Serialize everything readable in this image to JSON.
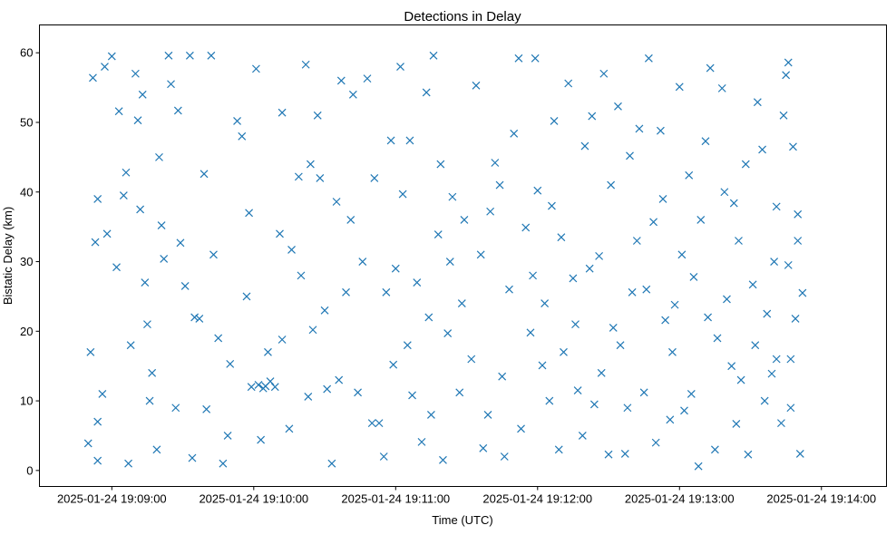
{
  "chart_data": {
    "type": "scatter",
    "title": "Detections in Delay",
    "xlabel": "Time (UTC)",
    "ylabel": "Bistatic Delay (km)",
    "x_base_time": "2025-01-24 19:08:00",
    "x_units": "seconds after base time",
    "xlim": [
      29.4,
      387.5
    ],
    "ylim": [
      -2.3,
      64
    ],
    "grid": false,
    "marker": "x",
    "color": "#1f77b4",
    "x_ticks": [
      {
        "value": 60,
        "label": "2025-01-24 19:09:00"
      },
      {
        "value": 120,
        "label": "2025-01-24 19:10:00"
      },
      {
        "value": 180,
        "label": "2025-01-24 19:11:00"
      },
      {
        "value": 240,
        "label": "2025-01-24 19:12:00"
      },
      {
        "value": 300,
        "label": "2025-01-24 19:13:00"
      },
      {
        "value": 360,
        "label": "2025-01-24 19:14:00"
      }
    ],
    "y_ticks": [
      {
        "value": 0,
        "label": "0"
      },
      {
        "value": 10,
        "label": "10"
      },
      {
        "value": 20,
        "label": "20"
      },
      {
        "value": 30,
        "label": "30"
      },
      {
        "value": 40,
        "label": "40"
      },
      {
        "value": 50,
        "label": "50"
      },
      {
        "value": 60,
        "label": "60"
      }
    ],
    "points": [
      [
        50,
        3.9
      ],
      [
        51,
        17
      ],
      [
        52,
        56.4
      ],
      [
        53,
        32.8
      ],
      [
        54,
        39
      ],
      [
        54,
        7
      ],
      [
        54,
        1.4
      ],
      [
        57,
        58
      ],
      [
        58,
        34
      ],
      [
        60,
        59.5
      ],
      [
        62,
        29.2
      ],
      [
        63,
        51.6
      ],
      [
        65,
        39.5
      ],
      [
        66,
        42.8
      ],
      [
        67,
        1
      ],
      [
        70,
        57
      ],
      [
        71,
        50.3
      ],
      [
        72,
        37.5
      ],
      [
        73,
        54
      ],
      [
        75,
        21
      ],
      [
        76,
        10
      ],
      [
        77,
        14
      ],
      [
        79,
        3
      ],
      [
        81,
        35.2
      ],
      [
        82,
        30.4
      ],
      [
        84,
        59.6
      ],
      [
        85,
        55.5
      ],
      [
        88,
        51.7
      ],
      [
        89,
        32.7
      ],
      [
        91,
        26.5
      ],
      [
        93,
        59.6
      ],
      [
        94,
        1.8
      ],
      [
        97,
        21.8
      ],
      [
        99,
        42.6
      ],
      [
        100,
        8.8
      ],
      [
        102,
        59.6
      ],
      [
        105,
        19
      ],
      [
        107,
        1
      ],
      [
        110,
        15.3
      ],
      [
        113,
        50.2
      ],
      [
        117,
        25
      ],
      [
        118,
        37
      ],
      [
        121,
        57.7
      ],
      [
        123,
        4.4
      ],
      [
        125,
        12.1
      ],
      [
        127,
        12.8
      ],
      [
        129,
        12
      ],
      [
        132,
        51.4
      ],
      [
        132,
        18.8
      ],
      [
        136,
        31.7
      ],
      [
        139,
        42.2
      ],
      [
        142,
        58.3
      ],
      [
        143,
        10.6
      ],
      [
        145,
        20.2
      ],
      [
        147,
        51
      ],
      [
        148,
        42
      ],
      [
        151,
        11.7
      ],
      [
        153,
        1
      ],
      [
        155,
        38.6
      ],
      [
        157,
        56
      ],
      [
        159,
        25.6
      ],
      [
        162,
        54
      ],
      [
        164,
        11.2
      ],
      [
        168,
        56.3
      ],
      [
        170,
        6.8
      ],
      [
        173,
        6.8
      ],
      [
        176,
        25.6
      ],
      [
        178,
        47.4
      ],
      [
        179,
        15.2
      ],
      [
        182,
        58
      ],
      [
        183,
        39.7
      ],
      [
        186,
        47.4
      ],
      [
        187,
        10.8
      ],
      [
        191,
        4.1
      ],
      [
        193,
        54.3
      ],
      [
        194,
        22
      ],
      [
        196,
        59.6
      ],
      [
        198,
        33.9
      ],
      [
        200,
        1.5
      ],
      [
        202,
        19.7
      ],
      [
        204,
        39.3
      ],
      [
        207,
        11.2
      ],
      [
        209,
        36
      ],
      [
        214,
        55.3
      ],
      [
        217,
        3.2
      ],
      [
        220,
        37.2
      ],
      [
        222,
        44.2
      ],
      [
        225,
        13.5
      ],
      [
        226,
        2
      ],
      [
        230,
        48.4
      ],
      [
        232,
        59.2
      ],
      [
        235,
        34.9
      ],
      [
        237,
        19.8
      ],
      [
        239,
        59.2
      ],
      [
        240,
        40.2
      ],
      [
        242,
        15.1
      ],
      [
        245,
        10
      ],
      [
        247,
        50.2
      ],
      [
        249,
        3
      ],
      [
        250,
        33.5
      ],
      [
        253,
        55.6
      ],
      [
        255,
        27.6
      ],
      [
        257,
        11.5
      ],
      [
        260,
        46.6
      ],
      [
        263,
        50.9
      ],
      [
        264,
        9.5
      ],
      [
        266,
        30.8
      ],
      [
        268,
        57
      ],
      [
        270,
        2.3
      ],
      [
        272,
        20.5
      ],
      [
        274,
        52.3
      ],
      [
        277,
        2.4
      ],
      [
        279,
        45.2
      ],
      [
        280,
        25.6
      ],
      [
        283,
        49.1
      ],
      [
        285,
        11.2
      ],
      [
        287,
        59.2
      ],
      [
        289,
        35.7
      ],
      [
        292,
        48.8
      ],
      [
        294,
        21.6
      ],
      [
        296,
        7.3
      ],
      [
        298,
        23.8
      ],
      [
        300,
        55.1
      ],
      [
        302,
        8.6
      ],
      [
        304,
        42.4
      ],
      [
        306,
        27.8
      ],
      [
        308,
        0.6
      ],
      [
        311,
        47.3
      ],
      [
        313,
        57.8
      ],
      [
        316,
        19
      ],
      [
        318,
        54.9
      ],
      [
        320,
        24.6
      ],
      [
        323,
        38.4
      ],
      [
        324,
        6.7
      ],
      [
        326,
        13
      ],
      [
        329,
        2.3
      ],
      [
        331,
        26.7
      ],
      [
        333,
        52.9
      ],
      [
        335,
        46.1
      ],
      [
        337,
        22.5
      ],
      [
        339,
        13.9
      ],
      [
        341,
        37.9
      ],
      [
        343,
        6.8
      ],
      [
        345,
        56.8
      ],
      [
        346,
        29.5
      ],
      [
        349,
        21.8
      ],
      [
        350,
        36.8
      ],
      [
        351,
        2.4
      ],
      [
        348,
        46.5
      ],
      [
        346,
        58.6
      ],
      [
        341,
        16
      ],
      [
        56,
        11
      ],
      [
        68,
        18
      ],
      [
        74,
        27
      ],
      [
        80,
        45
      ],
      [
        87,
        9
      ],
      [
        95,
        22
      ],
      [
        103,
        31
      ],
      [
        109,
        5
      ],
      [
        115,
        48
      ],
      [
        119,
        12
      ],
      [
        122,
        12.3
      ],
      [
        124,
        11.8
      ],
      [
        126,
        17
      ],
      [
        131,
        34
      ],
      [
        135,
        6
      ],
      [
        140,
        28
      ],
      [
        144,
        44
      ],
      [
        150,
        23
      ],
      [
        156,
        13
      ],
      [
        161,
        36
      ],
      [
        166,
        30
      ],
      [
        171,
        42
      ],
      [
        175,
        2
      ],
      [
        180,
        29
      ],
      [
        185,
        18
      ],
      [
        189,
        27
      ],
      [
        195,
        8
      ],
      [
        199,
        44
      ],
      [
        203,
        30
      ],
      [
        208,
        24
      ],
      [
        212,
        16
      ],
      [
        216,
        31
      ],
      [
        219,
        8
      ],
      [
        224,
        41
      ],
      [
        228,
        26
      ],
      [
        233,
        6
      ],
      [
        238,
        28
      ],
      [
        243,
        24
      ],
      [
        246,
        38
      ],
      [
        251,
        17
      ],
      [
        256,
        21
      ],
      [
        259,
        5
      ],
      [
        262,
        29
      ],
      [
        267,
        14
      ],
      [
        271,
        41
      ],
      [
        275,
        18
      ],
      [
        278,
        9
      ],
      [
        282,
        33
      ],
      [
        286,
        26
      ],
      [
        290,
        4
      ],
      [
        293,
        39
      ],
      [
        297,
        17
      ],
      [
        301,
        31
      ],
      [
        305,
        11
      ],
      [
        309,
        36
      ],
      [
        312,
        22
      ],
      [
        315,
        3
      ],
      [
        319,
        40
      ],
      [
        322,
        15
      ],
      [
        325,
        33
      ],
      [
        328,
        44
      ],
      [
        332,
        18
      ],
      [
        336,
        10
      ],
      [
        340,
        30
      ],
      [
        344,
        51
      ],
      [
        347,
        16
      ],
      [
        350,
        33
      ],
      [
        352,
        25.5
      ],
      [
        347,
        9
      ]
    ]
  }
}
